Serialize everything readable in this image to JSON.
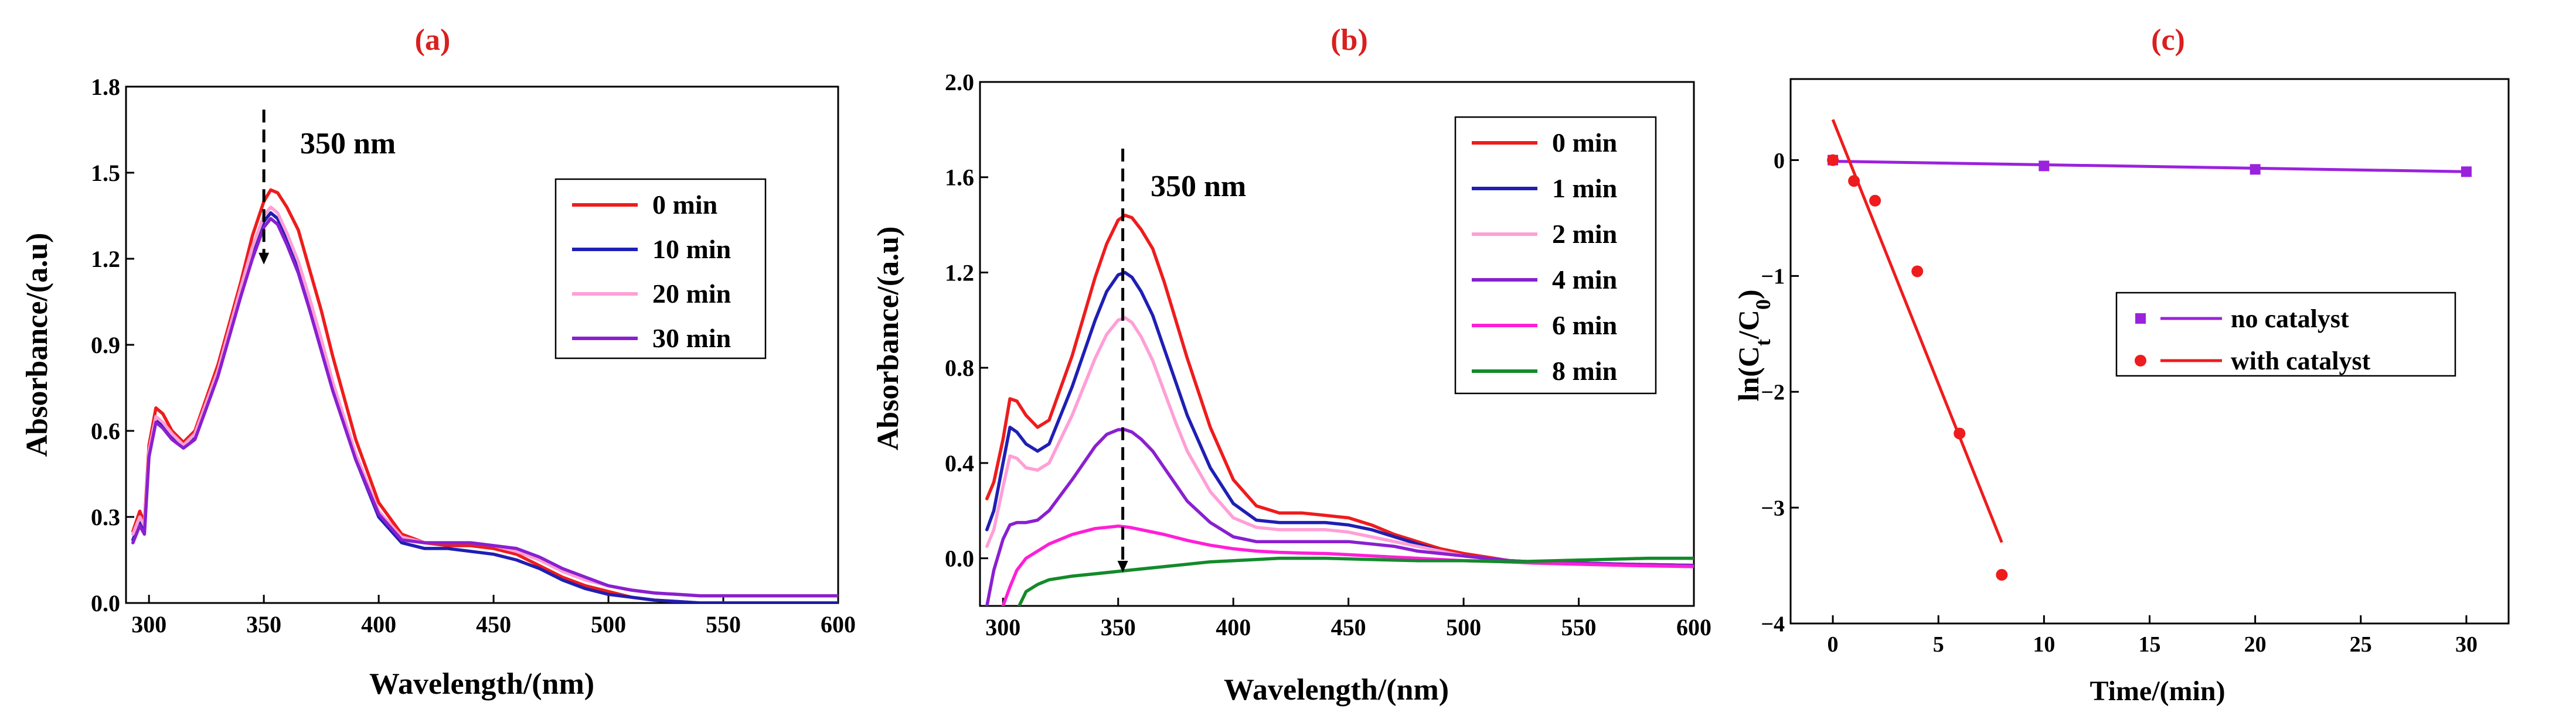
{
  "panel_colors": {
    "label": "#d9201e"
  },
  "chart_data": [
    {
      "id": "a",
      "panel_label": "(a)",
      "type": "line",
      "xlabel": "Wavelength/(nm)",
      "ylabel": "Absorbance/(a.u)",
      "xlim": [
        290,
        600
      ],
      "ylim": [
        0,
        1.8
      ],
      "xticks": [
        300,
        350,
        400,
        450,
        500,
        550,
        600
      ],
      "yticks": [
        0.0,
        0.3,
        0.6,
        0.9,
        1.2,
        1.5,
        1.8
      ],
      "ytick_labels": [
        "0.0",
        "0.3",
        "0.6",
        "0.9",
        "1.2",
        "1.5",
        "1.8"
      ],
      "annotation": {
        "text": "350 nm",
        "x": 350,
        "arrow_top": 1.72,
        "arrow_bottom": 1.18
      },
      "series": [
        {
          "name": "0 min",
          "color": "#ee1c1c",
          "x": [
            293,
            296,
            298,
            300,
            303,
            306,
            310,
            315,
            320,
            330,
            340,
            345,
            350,
            353,
            356,
            360,
            365,
            370,
            375,
            380,
            390,
            400,
            410,
            420,
            430,
            440,
            450,
            460,
            470,
            480,
            490,
            500,
            510,
            520,
            530,
            540,
            550,
            560,
            580,
            600
          ],
          "y": [
            0.25,
            0.32,
            0.28,
            0.55,
            0.68,
            0.66,
            0.6,
            0.56,
            0.6,
            0.83,
            1.12,
            1.28,
            1.4,
            1.44,
            1.43,
            1.38,
            1.3,
            1.16,
            1.02,
            0.86,
            0.57,
            0.35,
            0.24,
            0.21,
            0.2,
            0.2,
            0.19,
            0.17,
            0.13,
            0.09,
            0.06,
            0.04,
            0.02,
            0.01,
            0.005,
            0.0,
            0.0,
            0.0,
            0.0,
            0.0
          ]
        },
        {
          "name": "10 min",
          "color": "#1f1fb4",
          "x": [
            293,
            296,
            298,
            300,
            303,
            306,
            310,
            315,
            320,
            330,
            340,
            345,
            350,
            353,
            356,
            360,
            365,
            370,
            375,
            380,
            390,
            400,
            410,
            420,
            430,
            440,
            450,
            460,
            470,
            480,
            490,
            500,
            510,
            520,
            530,
            540,
            550,
            560,
            580,
            600
          ],
          "y": [
            0.22,
            0.28,
            0.25,
            0.52,
            0.64,
            0.62,
            0.58,
            0.55,
            0.58,
            0.8,
            1.08,
            1.22,
            1.33,
            1.36,
            1.34,
            1.27,
            1.17,
            1.04,
            0.9,
            0.75,
            0.5,
            0.3,
            0.21,
            0.19,
            0.19,
            0.18,
            0.17,
            0.15,
            0.12,
            0.08,
            0.05,
            0.03,
            0.02,
            0.01,
            0.005,
            0.0,
            0.0,
            0.0,
            0.0,
            0.0
          ]
        },
        {
          "name": "20 min",
          "color": "#ff9fd6",
          "x": [
            293,
            296,
            298,
            300,
            303,
            306,
            310,
            315,
            320,
            330,
            340,
            345,
            350,
            353,
            356,
            360,
            365,
            370,
            375,
            380,
            390,
            400,
            410,
            420,
            430,
            440,
            450,
            460,
            470,
            480,
            490,
            500,
            510,
            520,
            530,
            540,
            550,
            560,
            580,
            600
          ],
          "y": [
            0.24,
            0.3,
            0.27,
            0.53,
            0.65,
            0.63,
            0.59,
            0.55,
            0.59,
            0.81,
            1.1,
            1.24,
            1.35,
            1.38,
            1.36,
            1.29,
            1.19,
            1.06,
            0.92,
            0.77,
            0.52,
            0.32,
            0.23,
            0.21,
            0.21,
            0.21,
            0.2,
            0.18,
            0.15,
            0.11,
            0.08,
            0.06,
            0.045,
            0.035,
            0.03,
            0.025,
            0.025,
            0.025,
            0.025,
            0.025
          ]
        },
        {
          "name": "30 min",
          "color": "#8a1fd0",
          "x": [
            293,
            296,
            298,
            300,
            303,
            306,
            310,
            315,
            320,
            330,
            340,
            345,
            350,
            353,
            356,
            360,
            365,
            370,
            375,
            380,
            390,
            400,
            410,
            420,
            430,
            440,
            450,
            460,
            470,
            480,
            490,
            500,
            510,
            520,
            530,
            540,
            550,
            560,
            580,
            600
          ],
          "y": [
            0.21,
            0.27,
            0.24,
            0.51,
            0.63,
            0.61,
            0.57,
            0.54,
            0.57,
            0.79,
            1.07,
            1.2,
            1.31,
            1.34,
            1.32,
            1.25,
            1.15,
            1.02,
            0.88,
            0.74,
            0.5,
            0.31,
            0.22,
            0.21,
            0.21,
            0.21,
            0.2,
            0.19,
            0.16,
            0.12,
            0.09,
            0.06,
            0.045,
            0.035,
            0.03,
            0.025,
            0.025,
            0.025,
            0.025,
            0.025
          ]
        }
      ]
    },
    {
      "id": "b",
      "panel_label": "(b)",
      "type": "line",
      "xlabel": "Wavelength/(nm)",
      "ylabel": "Absorbance/(a.u)",
      "xlim": [
        290,
        600
      ],
      "ylim": [
        -0.2,
        2.0
      ],
      "xticks": [
        300,
        350,
        400,
        450,
        500,
        550,
        600
      ],
      "yticks": [
        0.0,
        0.4,
        0.8,
        1.2,
        1.6,
        2.0
      ],
      "ytick_labels": [
        "0.0",
        "0.4",
        "0.8",
        "1.2",
        "1.6",
        "2.0"
      ],
      "annotation": {
        "text": "350 nm",
        "x": 352,
        "arrow_top": 1.72,
        "arrow_bottom": -0.06
      },
      "series": [
        {
          "name": "0 min",
          "color": "#ee1c1c",
          "x": [
            293,
            296,
            300,
            303,
            306,
            310,
            315,
            320,
            330,
            340,
            345,
            350,
            353,
            356,
            360,
            365,
            370,
            375,
            380,
            390,
            400,
            410,
            420,
            430,
            440,
            450,
            460,
            470,
            480,
            490,
            500,
            510,
            520,
            530,
            550,
            570,
            600
          ],
          "y": [
            0.25,
            0.32,
            0.5,
            0.67,
            0.66,
            0.6,
            0.55,
            0.58,
            0.85,
            1.18,
            1.32,
            1.42,
            1.44,
            1.43,
            1.38,
            1.3,
            1.16,
            1.0,
            0.84,
            0.55,
            0.33,
            0.22,
            0.19,
            0.19,
            0.18,
            0.17,
            0.14,
            0.1,
            0.07,
            0.04,
            0.02,
            0.005,
            -0.01,
            -0.015,
            -0.02,
            -0.025,
            -0.03
          ]
        },
        {
          "name": "1 min",
          "color": "#1f1fb4",
          "x": [
            293,
            296,
            300,
            303,
            306,
            310,
            315,
            320,
            330,
            340,
            345,
            350,
            353,
            356,
            360,
            365,
            370,
            375,
            380,
            390,
            400,
            410,
            420,
            430,
            440,
            450,
            460,
            470,
            480,
            490,
            500,
            510,
            520,
            530,
            550,
            570,
            600
          ],
          "y": [
            0.12,
            0.2,
            0.4,
            0.55,
            0.53,
            0.48,
            0.45,
            0.48,
            0.72,
            1.0,
            1.12,
            1.19,
            1.2,
            1.18,
            1.12,
            1.02,
            0.88,
            0.74,
            0.6,
            0.38,
            0.23,
            0.16,
            0.15,
            0.15,
            0.15,
            0.14,
            0.12,
            0.09,
            0.06,
            0.03,
            0.01,
            0.0,
            -0.01,
            -0.015,
            -0.02,
            -0.025,
            -0.03
          ]
        },
        {
          "name": "2 min",
          "color": "#ff9fd6",
          "x": [
            293,
            296,
            300,
            303,
            306,
            310,
            315,
            320,
            330,
            340,
            345,
            350,
            353,
            356,
            360,
            365,
            370,
            375,
            380,
            390,
            400,
            410,
            420,
            430,
            440,
            450,
            460,
            470,
            480,
            490,
            500,
            510,
            520,
            530,
            550,
            570,
            600
          ],
          "y": [
            0.05,
            0.12,
            0.3,
            0.43,
            0.42,
            0.38,
            0.37,
            0.4,
            0.6,
            0.84,
            0.94,
            1.0,
            1.01,
            0.99,
            0.93,
            0.83,
            0.7,
            0.57,
            0.45,
            0.28,
            0.17,
            0.13,
            0.12,
            0.12,
            0.12,
            0.11,
            0.09,
            0.07,
            0.05,
            0.03,
            0.01,
            0.0,
            -0.01,
            -0.015,
            -0.02,
            -0.025,
            -0.03
          ]
        },
        {
          "name": "4 min",
          "color": "#8a1fd0",
          "x": [
            293,
            296,
            300,
            303,
            306,
            310,
            315,
            320,
            330,
            340,
            345,
            350,
            353,
            356,
            360,
            365,
            370,
            375,
            380,
            390,
            400,
            410,
            420,
            430,
            440,
            450,
            460,
            470,
            480,
            490,
            500,
            510,
            520,
            530,
            550,
            570,
            600
          ],
          "y": [
            -0.2,
            -0.05,
            0.08,
            0.14,
            0.15,
            0.15,
            0.16,
            0.2,
            0.33,
            0.47,
            0.52,
            0.54,
            0.54,
            0.53,
            0.5,
            0.45,
            0.38,
            0.31,
            0.24,
            0.15,
            0.09,
            0.07,
            0.07,
            0.07,
            0.07,
            0.07,
            0.06,
            0.05,
            0.03,
            0.02,
            0.01,
            0.0,
            -0.01,
            -0.015,
            -0.02,
            -0.025,
            -0.03
          ]
        },
        {
          "name": "6 min",
          "color": "#ff1fd7",
          "x": [
            300,
            303,
            306,
            310,
            315,
            320,
            330,
            340,
            345,
            350,
            355,
            360,
            370,
            380,
            390,
            400,
            410,
            420,
            430,
            440,
            450,
            460,
            470,
            480,
            490,
            500,
            510,
            520,
            530,
            550,
            570,
            600
          ],
          "y": [
            -0.2,
            -0.12,
            -0.05,
            0.0,
            0.03,
            0.06,
            0.1,
            0.125,
            0.13,
            0.135,
            0.13,
            0.12,
            0.1,
            0.075,
            0.055,
            0.04,
            0.03,
            0.025,
            0.022,
            0.02,
            0.015,
            0.01,
            0.005,
            0.0,
            -0.005,
            -0.01,
            -0.012,
            -0.015,
            -0.02,
            -0.025,
            -0.03,
            -0.035
          ]
        },
        {
          "name": "8 min",
          "color": "#138a2a",
          "x": [
            307,
            310,
            315,
            320,
            330,
            340,
            350,
            360,
            370,
            380,
            390,
            400,
            410,
            420,
            440,
            460,
            480,
            500,
            520,
            540,
            560,
            580,
            600
          ],
          "y": [
            -0.2,
            -0.14,
            -0.11,
            -0.09,
            -0.075,
            -0.065,
            -0.055,
            -0.045,
            -0.035,
            -0.025,
            -0.015,
            -0.01,
            -0.005,
            0.0,
            0.0,
            -0.005,
            -0.01,
            -0.01,
            -0.015,
            -0.01,
            -0.005,
            0.0,
            0.0
          ]
        }
      ]
    },
    {
      "id": "c",
      "panel_label": "(c)",
      "type": "scatter",
      "xlabel": "Time/(min)",
      "ylabel": "ln(C",
      "ylabel_sub1": "t",
      "ylabel_mid": "/C",
      "ylabel_sub2": "0",
      "ylabel_end": ")",
      "xlim": [
        -2,
        32
      ],
      "ylim": [
        -4,
        0.7
      ],
      "xticks": [
        0,
        5,
        10,
        15,
        20,
        25,
        30
      ],
      "yticks": [
        -4,
        -3,
        -2,
        -1,
        0
      ],
      "ytick_labels": [
        "−4",
        "−3",
        "−2",
        "−1",
        "0"
      ],
      "series": [
        {
          "name": "no catalyst",
          "color": "#9b22dd",
          "marker": "square",
          "x": [
            0,
            10,
            20,
            30
          ],
          "y": [
            0,
            -0.05,
            -0.08,
            -0.1
          ],
          "fit": {
            "x": [
              0,
              30
            ],
            "y": [
              -0.01,
              -0.1
            ]
          }
        },
        {
          "name": "with catalyst",
          "color": "#ee1c1c",
          "marker": "circle",
          "x": [
            0,
            1,
            2,
            4,
            6,
            8
          ],
          "y": [
            0,
            -0.18,
            -0.35,
            -0.96,
            -2.36,
            -3.58
          ],
          "fit": {
            "x": [
              0,
              8
            ],
            "y": [
              0.35,
              -3.3
            ]
          }
        }
      ]
    }
  ]
}
